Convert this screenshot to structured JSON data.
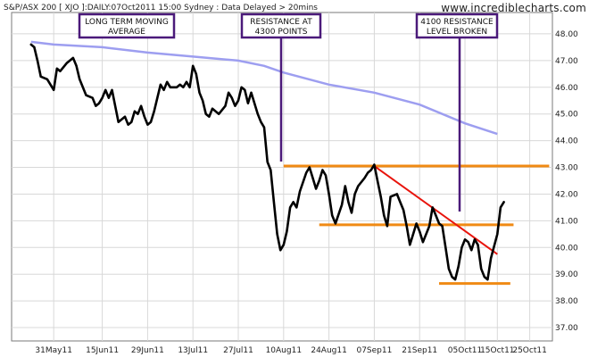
{
  "header": {
    "left": "S&P/ASX 200  [ XJO ]:DAILY:07Oct2011 15:00 Sydney : Data Delayed > 20mins",
    "brand": "www.incrediblecharts.com"
  },
  "annotations": [
    {
      "lines": [
        "LONG TERM MOVING",
        "AVERAGE"
      ]
    },
    {
      "lines": [
        "RESISTANCE AT",
        "4300 POINTS"
      ]
    },
    {
      "lines": [
        "4100 RESISTANCE",
        "LEVEL BROKEN"
      ]
    }
  ],
  "colors": {
    "price": "#000000",
    "moving_average": "#9d9ef0",
    "support_resistance": "#f08a14",
    "trendline": "#e8140c",
    "annotation": "#4b1a7a",
    "grid": "#d8d8d8"
  },
  "chart_data": {
    "type": "line",
    "title": "",
    "xlabel": "",
    "ylabel": "",
    "ylim": [
      36.5,
      48.8
    ],
    "y_axis_side": "right",
    "grid": true,
    "x_ticks": [
      "31May11",
      "15Jun11",
      "29Jun11",
      "13Jul11",
      "27Jul11",
      "10Aug11",
      "24Aug11",
      "07Sep11",
      "21Sep11",
      "05Oct11",
      "15Oct11",
      "25Oct11"
    ],
    "x_tick_dates": [
      "2011-05-31",
      "2011-06-15",
      "2011-06-29",
      "2011-07-13",
      "2011-07-27",
      "2011-08-10",
      "2011-08-24",
      "2011-09-07",
      "2011-09-21",
      "2011-10-05",
      "2011-10-15",
      "2011-10-25"
    ],
    "y_ticks": [
      "37.00",
      "38.00",
      "39.00",
      "40.00",
      "41.00",
      "42.00",
      "43.00",
      "44.00",
      "45.00",
      "46.00",
      "47.00",
      "48.00"
    ],
    "series": [
      {
        "type": "price",
        "points": [
          [
            "2011-05-24",
            47.6
          ],
          [
            "2011-05-25",
            47.5
          ],
          [
            "2011-05-26",
            47.0
          ],
          [
            "2011-05-27",
            46.4
          ],
          [
            "2011-05-29",
            46.3
          ],
          [
            "2011-05-31",
            45.9
          ],
          [
            "2011-06-01",
            46.7
          ],
          [
            "2011-06-02",
            46.6
          ],
          [
            "2011-06-04",
            46.9
          ],
          [
            "2011-06-06",
            47.1
          ],
          [
            "2011-06-07",
            46.8
          ],
          [
            "2011-06-08",
            46.3
          ],
          [
            "2011-06-10",
            45.7
          ],
          [
            "2011-06-12",
            45.6
          ],
          [
            "2011-06-13",
            45.3
          ],
          [
            "2011-06-14",
            45.4
          ],
          [
            "2011-06-15",
            45.6
          ],
          [
            "2011-06-16",
            45.9
          ],
          [
            "2011-06-17",
            45.6
          ],
          [
            "2011-06-18",
            45.9
          ],
          [
            "2011-06-19",
            45.3
          ],
          [
            "2011-06-20",
            44.7
          ],
          [
            "2011-06-22",
            44.9
          ],
          [
            "2011-06-23",
            44.6
          ],
          [
            "2011-06-24",
            44.7
          ],
          [
            "2011-06-25",
            45.1
          ],
          [
            "2011-06-26",
            45.0
          ],
          [
            "2011-06-27",
            45.3
          ],
          [
            "2011-06-28",
            44.9
          ],
          [
            "2011-06-29",
            44.6
          ],
          [
            "2011-06-30",
            44.7
          ],
          [
            "2011-07-01",
            45.1
          ],
          [
            "2011-07-02",
            45.6
          ],
          [
            "2011-07-03",
            46.1
          ],
          [
            "2011-07-04",
            45.9
          ],
          [
            "2011-07-05",
            46.2
          ],
          [
            "2011-07-06",
            46.0
          ],
          [
            "2011-07-08",
            46.0
          ],
          [
            "2011-07-09",
            46.1
          ],
          [
            "2011-07-10",
            46.0
          ],
          [
            "2011-07-11",
            46.2
          ],
          [
            "2011-07-12",
            46.0
          ],
          [
            "2011-07-13",
            46.8
          ],
          [
            "2011-07-14",
            46.5
          ],
          [
            "2011-07-15",
            45.8
          ],
          [
            "2011-07-16",
            45.5
          ],
          [
            "2011-07-17",
            45.0
          ],
          [
            "2011-07-18",
            44.9
          ],
          [
            "2011-07-19",
            45.2
          ],
          [
            "2011-07-20",
            45.1
          ],
          [
            "2011-07-21",
            45.0
          ],
          [
            "2011-07-23",
            45.3
          ],
          [
            "2011-07-24",
            45.8
          ],
          [
            "2011-07-25",
            45.6
          ],
          [
            "2011-07-26",
            45.3
          ],
          [
            "2011-07-27",
            45.5
          ],
          [
            "2011-07-28",
            46.0
          ],
          [
            "2011-07-29",
            45.9
          ],
          [
            "2011-07-30",
            45.4
          ],
          [
            "2011-07-31",
            45.8
          ],
          [
            "2011-08-02",
            45.0
          ],
          [
            "2011-08-03",
            44.7
          ],
          [
            "2011-08-04",
            44.5
          ],
          [
            "2011-08-05",
            43.2
          ],
          [
            "2011-08-06",
            42.9
          ],
          [
            "2011-08-07",
            41.7
          ],
          [
            "2011-08-08",
            40.5
          ],
          [
            "2011-08-09",
            39.9
          ],
          [
            "2011-08-10",
            40.1
          ],
          [
            "2011-08-11",
            40.6
          ],
          [
            "2011-08-12",
            41.5
          ],
          [
            "2011-08-13",
            41.7
          ],
          [
            "2011-08-14",
            41.5
          ],
          [
            "2011-08-15",
            42.1
          ],
          [
            "2011-08-17",
            42.8
          ],
          [
            "2011-08-18",
            43.0
          ],
          [
            "2011-08-19",
            42.6
          ],
          [
            "2011-08-20",
            42.2
          ],
          [
            "2011-08-21",
            42.5
          ],
          [
            "2011-08-22",
            42.9
          ],
          [
            "2011-08-23",
            42.7
          ],
          [
            "2011-08-24",
            42.0
          ],
          [
            "2011-08-25",
            41.2
          ],
          [
            "2011-08-26",
            40.9
          ],
          [
            "2011-08-28",
            41.6
          ],
          [
            "2011-08-29",
            42.3
          ],
          [
            "2011-08-30",
            41.7
          ],
          [
            "2011-08-31",
            41.3
          ],
          [
            "2011-09-01",
            42.0
          ],
          [
            "2011-09-02",
            42.3
          ],
          [
            "2011-09-04",
            42.6
          ],
          [
            "2011-09-05",
            42.8
          ],
          [
            "2011-09-06",
            42.9
          ],
          [
            "2011-09-07",
            43.1
          ],
          [
            "2011-09-08",
            42.5
          ],
          [
            "2011-09-09",
            41.9
          ],
          [
            "2011-09-10",
            41.2
          ],
          [
            "2011-09-11",
            40.8
          ],
          [
            "2011-09-12",
            41.9
          ],
          [
            "2011-09-14",
            42.0
          ],
          [
            "2011-09-15",
            41.7
          ],
          [
            "2011-09-16",
            41.4
          ],
          [
            "2011-09-17",
            40.8
          ],
          [
            "2011-09-18",
            40.1
          ],
          [
            "2011-09-19",
            40.5
          ],
          [
            "2011-09-20",
            40.9
          ],
          [
            "2011-09-21",
            40.6
          ],
          [
            "2011-09-22",
            40.2
          ],
          [
            "2011-09-23",
            40.5
          ],
          [
            "2011-09-24",
            40.8
          ],
          [
            "2011-09-25",
            41.5
          ],
          [
            "2011-09-26",
            41.2
          ],
          [
            "2011-09-27",
            40.9
          ],
          [
            "2011-09-28",
            40.8
          ],
          [
            "2011-09-29",
            40.0
          ],
          [
            "2011-09-30",
            39.2
          ],
          [
            "2011-10-01",
            38.9
          ],
          [
            "2011-10-02",
            38.8
          ],
          [
            "2011-10-03",
            39.3
          ],
          [
            "2011-10-04",
            40.0
          ],
          [
            "2011-10-05",
            40.3
          ],
          [
            "2011-10-06",
            40.2
          ],
          [
            "2011-10-07",
            39.9
          ],
          [
            "2011-10-08",
            40.3
          ],
          [
            "2011-10-09",
            40.1
          ],
          [
            "2011-10-10",
            39.2
          ],
          [
            "2011-10-11",
            38.9
          ],
          [
            "2011-10-12",
            38.8
          ],
          [
            "2011-10-13",
            39.6
          ],
          [
            "2011-10-15",
            40.5
          ],
          [
            "2011-10-16",
            41.5
          ],
          [
            "2011-10-17",
            41.7
          ]
        ]
      },
      {
        "type": "moving_average",
        "points": [
          [
            "2011-05-24",
            47.7
          ],
          [
            "2011-05-31",
            47.6
          ],
          [
            "2011-06-15",
            47.5
          ],
          [
            "2011-06-29",
            47.3
          ],
          [
            "2011-07-13",
            47.15
          ],
          [
            "2011-07-27",
            47.0
          ],
          [
            "2011-08-04",
            46.8
          ],
          [
            "2011-08-10",
            46.55
          ],
          [
            "2011-08-24",
            46.1
          ],
          [
            "2011-09-07",
            45.8
          ],
          [
            "2011-09-21",
            45.35
          ],
          [
            "2011-10-05",
            44.65
          ],
          [
            "2011-10-15",
            44.25
          ]
        ]
      }
    ],
    "horizontal_lines": [
      {
        "y": 43.05,
        "from": "2011-08-10",
        "to": "2011-10-31"
      },
      {
        "y": 40.85,
        "from": "2011-08-21",
        "to": "2011-10-20"
      },
      {
        "y": 38.65,
        "from": "2011-09-27",
        "to": "2011-10-19"
      }
    ],
    "trendline": [
      [
        "2011-09-07",
        43.05
      ],
      [
        "2011-10-15",
        39.75
      ]
    ]
  }
}
